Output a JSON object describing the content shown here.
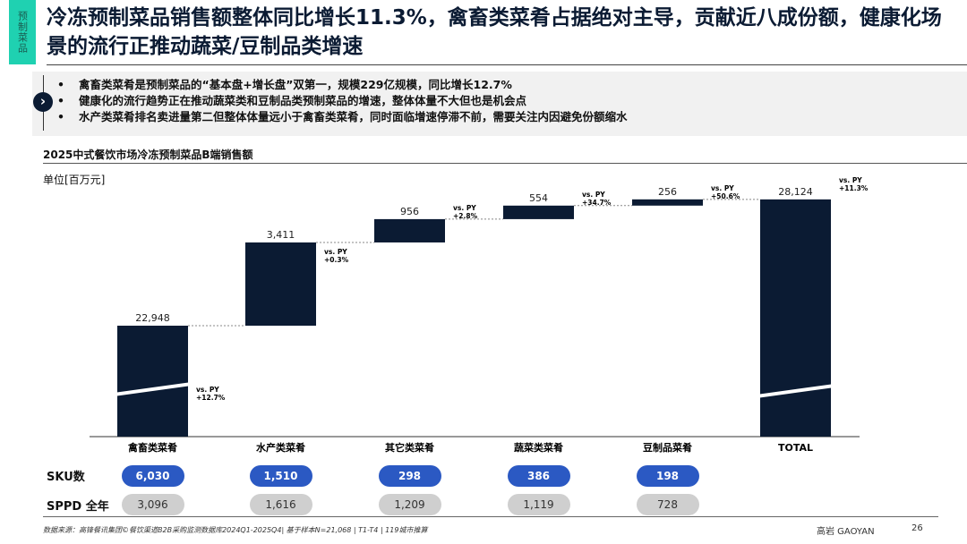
{
  "header": {
    "tag": "预制菜品",
    "title": "冷冻预制菜品销售额整体同比增长11.3%，禽畜类菜肴占据绝对主导，贡献近八成份额，健康化场景的流行正推动蔬菜/豆制品类增速"
  },
  "bullets": [
    "禽畜类菜肴是预制菜品的“基本盘+增长盘”双第一，规模229亿规模，同比增长12.7%",
    "健康化的流行趋势正在推动蔬菜类和豆制品类预制菜品的增速，整体体量不大但也是机会点",
    "水产类菜肴排名卖进量第二但整体体量远小于禽畜类菜肴，同时面临增速停滞不前，需要关注内因避免份额缩水"
  ],
  "chart_data": {
    "type": "waterfall",
    "title": "2025中式餐饮市场冷冻预制菜品B端销售额",
    "unit": "单位[百万元]",
    "categories": [
      "禽畜类菜肴",
      "水产类菜肴",
      "其它类菜肴",
      "蔬菜类菜肴",
      "豆制品菜肴",
      "TOTAL"
    ],
    "values": [
      22948,
      3411,
      956,
      554,
      256,
      28124
    ],
    "value_labels": [
      "22,948",
      "3,411",
      "956",
      "554",
      "256",
      "28,124"
    ],
    "vs_py_label": "vs. PY",
    "growth": [
      "+12.7%",
      "+0.3%",
      "+2.8%",
      "+34.7%",
      "+50.6%",
      "+11.3%"
    ],
    "axis_break": true,
    "bar_color": "#0b1b33"
  },
  "rows": {
    "sku_label": "SKU数",
    "sku": [
      "6,030",
      "1,510",
      "298",
      "386",
      "198"
    ],
    "sppd_label": "SPPD 全年",
    "sppd": [
      "3,096",
      "1,616",
      "1,209",
      "1,119",
      "728"
    ]
  },
  "footer": {
    "source": "数据来源：高锋餐讯集团©餐饮渠道B2B采购监测数据库2024Q1-2025Q4| 基于样本N=21,068 | T1-T4 | 119城市推算",
    "brand": "高岩 GAOYAN",
    "page": "26"
  },
  "colors": {
    "accent": "#1fd1b1",
    "sku_pill": "#2b59c3",
    "sppd_pill": "#cfcfcf"
  }
}
